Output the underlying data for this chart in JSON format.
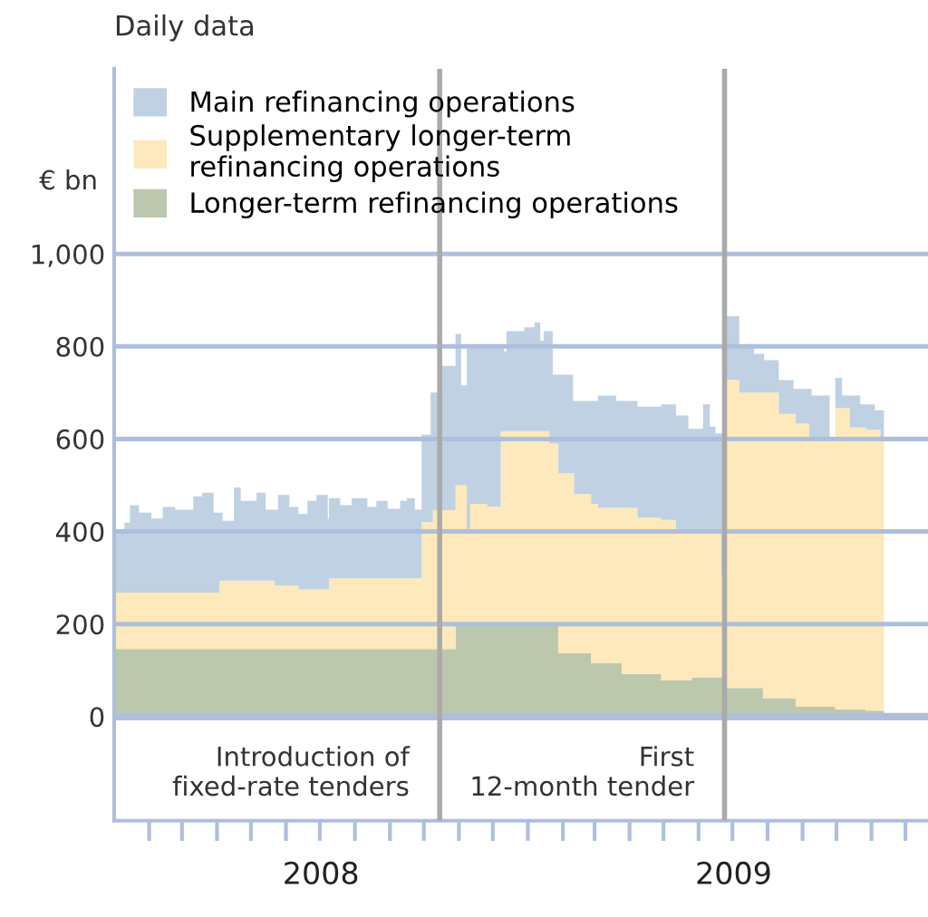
{
  "chart_data": {
    "type": "area",
    "title": "Daily data",
    "ylabel": "€ bn",
    "stacked": true,
    "x": [
      "2008-01-01",
      "2008-01-02",
      "2008-01-10",
      "2008-01-15",
      "2008-01-23",
      "2008-02-03",
      "2008-02-13",
      "2008-02-24",
      "2008-03-11",
      "2008-03-19",
      "2008-03-29",
      "2008-04-03",
      "2008-04-06",
      "2008-04-16",
      "2008-04-22",
      "2008-05-06",
      "2008-05-14",
      "2008-05-22",
      "2008-05-25",
      "2008-06-04",
      "2008-06-12",
      "2008-06-20",
      "2008-06-28",
      "2008-07-08",
      "2008-07-09",
      "2008-07-19",
      "2008-07-29",
      "2008-08-12",
      "2008-08-20",
      "2008-08-30",
      "2008-09-10",
      "2008-09-16",
      "2008-09-23",
      "2008-09-29",
      "2008-10-07",
      "2008-10-09",
      "2008-10-17",
      "2008-10-29",
      "2008-11-03",
      "2008-11-08",
      "2008-11-11",
      "2008-11-26",
      "2008-12-08",
      "2008-12-11",
      "2008-12-13",
      "2008-12-29",
      "2009-01-07",
      "2009-01-12",
      "2009-01-15",
      "2009-01-20",
      "2009-01-23",
      "2009-01-28",
      "2009-02-10",
      "2009-02-11",
      "2009-02-26",
      "2009-03-04",
      "2009-03-20",
      "2009-03-25",
      "2009-04-08",
      "2009-04-29",
      "2009-05-12",
      "2009-05-23",
      "2009-05-26",
      "2009-06-05",
      "2009-06-10",
      "2009-06-11",
      "2009-06-16",
      "2009-06-21",
      "2009-06-23",
      "2009-06-26",
      "2009-07-07",
      "2009-07-20",
      "2009-07-28",
      "2009-07-29",
      "2009-08-11",
      "2009-08-24",
      "2009-08-26",
      "2009-09-07",
      "2009-09-09",
      "2009-09-25",
      "2009-09-30",
      "2009-10-06",
      "2009-10-13",
      "2009-10-22",
      "2009-10-27",
      "2009-11-04",
      "2009-11-09",
      "2009-11-12"
    ],
    "series": [
      {
        "name": "Longer-term refinancing operations",
        "color": "#bcc8ad",
        "values": [
          146,
          146,
          146,
          146,
          146,
          146,
          146,
          146,
          146,
          146,
          146,
          146,
          146,
          146,
          146,
          146,
          146,
          146,
          146,
          146,
          146,
          146,
          146,
          146,
          146,
          146,
          146,
          146,
          146,
          146,
          146,
          146,
          146,
          146,
          146,
          146,
          146,
          203,
          203,
          203,
          203,
          196,
          196,
          196,
          196,
          196,
          196,
          196,
          196,
          196,
          196,
          137,
          137,
          137,
          115,
          115,
          115,
          92,
          92,
          78,
          78,
          78,
          85,
          85,
          85,
          85,
          85,
          85,
          62,
          62,
          62,
          62,
          40,
          40,
          40,
          40,
          21,
          21,
          21,
          21,
          16,
          16,
          16,
          16,
          13,
          13,
          13,
          13
        ]
      },
      {
        "name": "Supplementary longer-term\nrefinancing operations",
        "color": "#fde9bb",
        "values": [
          122,
          122,
          122,
          122,
          122,
          122,
          122,
          122,
          122,
          122,
          122,
          148,
          148,
          148,
          148,
          148,
          148,
          137,
          137,
          137,
          129,
          129,
          129,
          129,
          153,
          153,
          153,
          153,
          153,
          153,
          153,
          153,
          153,
          274,
          274,
          300,
          300,
          297,
          297,
          201,
          257,
          258,
          421,
          421,
          421,
          421,
          421,
          421,
          421,
          394,
          394,
          389,
          389,
          344,
          345,
          336,
          336,
          359,
          338,
          347,
          319,
          319,
          312,
          312,
          316,
          316,
          316,
          221,
          666,
          666,
          638,
          638,
          660,
          660,
          614,
          614,
          612,
          574,
          574,
          574,
          651,
          651,
          609,
          609,
          607,
          607,
          582,
          582
        ]
      },
      {
        "name": "Main refinancing operations",
        "color": "#bfd1e3",
        "values": [
          369,
          128,
          151,
          189,
          173,
          160,
          185,
          179,
          208,
          216,
          173,
          147,
          129,
          201,
          172,
          190,
          153,
          164,
          196,
          170,
          163,
          191,
          204,
          153,
          173,
          158,
          173,
          154,
          167,
          150,
          167,
          173,
          148,
          189,
          280,
          254,
          312,
          327,
          216,
          392,
          336,
          342,
          179,
          172,
          216,
          224,
          235,
          196,
          216,
          243,
          149,
          213,
          156,
          201,
          222,
          243,
          231,
          231,
          240,
          250,
          254,
          225,
          225,
          278,
          274,
          226,
          211,
          306,
          162,
          137,
          103,
          84,
          84,
          70,
          73,
          54,
          75,
          113,
          99,
          5,
          65,
          27,
          69,
          50,
          55,
          42,
          67,
          67
        ]
      }
    ],
    "xlim": [
      "2008-01-01",
      "2009-12-21"
    ],
    "xticks": [
      {
        "value": "2008-02-01",
        "label": null
      },
      {
        "value": "2008-03-01",
        "label": null
      },
      {
        "value": "2008-04-01",
        "label": null
      },
      {
        "value": "2008-05-01",
        "label": null
      },
      {
        "value": "2008-06-01",
        "label": null
      },
      {
        "value": "2008-07-01",
        "label": null
      },
      {
        "value": "2008-08-01",
        "label": null
      },
      {
        "value": "2008-09-01",
        "label": null
      },
      {
        "value": "2008-10-01",
        "label": null
      },
      {
        "value": "2008-11-01",
        "label": null
      },
      {
        "value": "2008-12-01",
        "label": null
      },
      {
        "value": "2009-01-01",
        "label": null
      },
      {
        "value": "2009-02-01",
        "label": null
      },
      {
        "value": "2009-03-01",
        "label": null
      },
      {
        "value": "2009-04-01",
        "label": null
      },
      {
        "value": "2009-05-01",
        "label": null
      },
      {
        "value": "2009-06-01",
        "label": null
      },
      {
        "value": "2009-07-01",
        "label": null
      },
      {
        "value": "2009-08-01",
        "label": null
      },
      {
        "value": "2009-09-01",
        "label": null
      },
      {
        "value": "2009-10-01",
        "label": null
      },
      {
        "value": "2009-11-01",
        "label": null
      },
      {
        "value": "2009-12-01",
        "label": null
      },
      {
        "value": "2008-07-02",
        "label": "2008"
      },
      {
        "value": "2009-07-02",
        "label": "2009"
      }
    ],
    "ylim": [
      -225,
      1400
    ],
    "yticks": [
      0,
      200,
      400,
      600,
      800,
      {
        "value": 1000,
        "label": "1,000"
      }
    ],
    "grid": "y",
    "legend": "top left",
    "ref_lines": [
      {
        "axis": "y",
        "value": 0,
        "color": "#aebfdc"
      },
      {
        "axis": "x",
        "value": "2008-10-15",
        "label": "Introduction of\nfixed-rate tenders",
        "color": "#aaaaaa"
      },
      {
        "axis": "x",
        "value": "2009-06-24",
        "label": "First\n12-month tender",
        "color": "#aaaaaa"
      }
    ]
  }
}
